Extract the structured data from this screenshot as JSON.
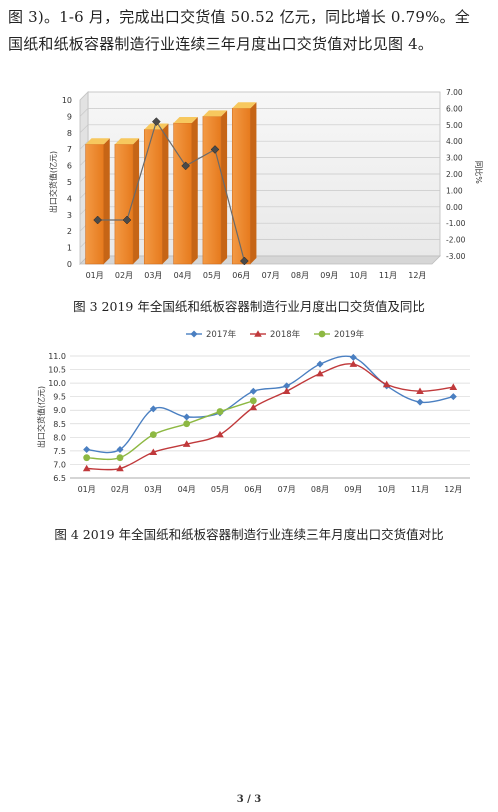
{
  "paragraph": {
    "line1": "图 3)。1-6 月，完成出口交货值 50.52 亿元，同比增长 0.79%。全",
    "line2": "国纸和纸板容器制造行业连续三年月度出口交货值对比见图 4。"
  },
  "captions": {
    "fig3": "图 3 2019 年全国纸和纸板容器制造行业月度出口交货值及同比",
    "fig4": "图 4 2019 年全国纸和纸板容器制造行业连续三年月度出口交货值对比"
  },
  "footer": {
    "page": "3 / 3"
  },
  "chart_data": [
    {
      "type": "bar",
      "categories": [
        "01月",
        "02月",
        "03月",
        "04月",
        "05月",
        "06月",
        "07月",
        "08月",
        "09月",
        "10月",
        "11月",
        "12月"
      ],
      "ylabel": "出口交货值(亿元)",
      "y2label": "同比%",
      "ylim": [
        0,
        10
      ],
      "y2lim": [
        -3,
        7
      ],
      "yticks": [
        "0",
        "1",
        "2",
        "3",
        "4",
        "5",
        "6",
        "7",
        "8",
        "9",
        "10"
      ],
      "y2ticks": [
        "-3.00",
        "-2.00",
        "-1.00",
        "0.00",
        "1.00",
        "2.00",
        "3.00",
        "4.00",
        "5.00",
        "6.00",
        "7.00"
      ],
      "series": [
        {
          "values": [
            7.3,
            7.3,
            8.2,
            8.6,
            9.0,
            9.5,
            null,
            null,
            null,
            null,
            null,
            null
          ]
        },
        {
          "axis": "right",
          "values": [
            -0.5,
            -0.5,
            5.5,
            2.8,
            3.8,
            -3.0,
            null,
            null,
            null,
            null,
            null,
            null
          ]
        }
      ],
      "colors": {
        "bar": "#f08a2e",
        "line": "#6a6a6a"
      },
      "grid": true
    },
    {
      "type": "line",
      "categories": [
        "01月",
        "02月",
        "03月",
        "04月",
        "05月",
        "06月",
        "07月",
        "08月",
        "09月",
        "10月",
        "11月",
        "12月"
      ],
      "ylabel": "出口交货值(亿元)",
      "ylim": [
        6.5,
        11.0
      ],
      "yticks": [
        "6.5",
        "7.0",
        "7.5",
        "8.0",
        "8.5",
        "9.0",
        "9.5",
        "10.0",
        "10.5",
        "11.0"
      ],
      "legend_position": "top",
      "series": [
        {
          "name": "2017年",
          "color": "#4a7fc1",
          "marker": "diamond",
          "values": [
            7.55,
            7.55,
            9.05,
            8.75,
            8.9,
            9.7,
            9.9,
            10.7,
            10.95,
            9.9,
            9.3,
            9.5
          ]
        },
        {
          "name": "2018年",
          "color": "#c0393b",
          "marker": "triangle",
          "values": [
            6.85,
            6.85,
            7.45,
            7.75,
            8.1,
            9.1,
            9.7,
            10.35,
            10.7,
            9.95,
            9.7,
            9.85
          ]
        },
        {
          "name": "2019年",
          "color": "#8db842",
          "marker": "circle",
          "values": [
            7.25,
            7.25,
            8.1,
            8.5,
            8.95,
            9.35,
            null,
            null,
            null,
            null,
            null,
            null
          ]
        }
      ],
      "grid": true
    }
  ]
}
